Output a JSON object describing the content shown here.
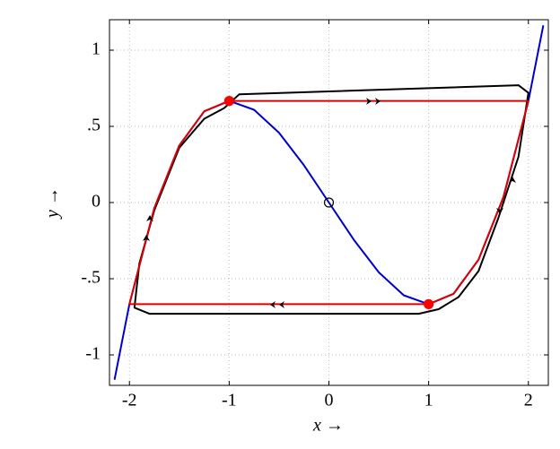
{
  "chart_data": {
    "type": "line",
    "x_label": "x →",
    "y_label": "y →",
    "xlim": [
      -2.2,
      2.2
    ],
    "ylim": [
      -1.2,
      1.2
    ],
    "xticks": [
      -2,
      -1,
      0,
      1,
      2
    ],
    "yticks": [
      -1,
      {
        "value": -0.5,
        "label": "-.5"
      },
      0,
      {
        "value": 0.5,
        "label": ".5"
      },
      1
    ],
    "grid": true,
    "series": [
      {
        "color": "#0000cc",
        "mode": "line",
        "x": [
          -2.15,
          -2,
          -1.75,
          -1.5,
          -1.25,
          -1,
          -0.75,
          -0.5,
          -0.25,
          0,
          0.25,
          0.5,
          0.75,
          1,
          1.25,
          1.5,
          1.75,
          2,
          2.15
        ],
        "values": [
          -1.163,
          -0.667,
          -0.036,
          0.375,
          0.599,
          0.667,
          0.609,
          0.458,
          0.245,
          0,
          -0.245,
          -0.458,
          -0.609,
          -0.667,
          -0.599,
          -0.375,
          0.036,
          0.667,
          1.163
        ]
      },
      {
        "color": "#000000",
        "mode": "line",
        "x": [
          -1.05,
          -0.9,
          1.9,
          2.0,
          1.9,
          1.7,
          1.5,
          1.3,
          1.1,
          0.9,
          -1.8,
          -1.95,
          -1.9,
          -1.75,
          -1.5,
          -1.25,
          -1.05
        ],
        "values": [
          0.62,
          0.71,
          0.77,
          0.72,
          0.3,
          -0.1,
          -0.45,
          -0.62,
          -0.7,
          -0.73,
          -0.73,
          -0.69,
          -0.4,
          -0.05,
          0.36,
          0.55,
          0.62
        ]
      },
      {
        "color": "#dd0000",
        "mode": "line",
        "x": [
          -1,
          2,
          1.75,
          1.5,
          1.25,
          1,
          -2,
          -1.75,
          -1.5,
          -1.25,
          -1
        ],
        "values": [
          0.667,
          0.667,
          0.036,
          -0.375,
          -0.599,
          -0.667,
          -0.667,
          -0.036,
          0.375,
          0.599,
          0.667
        ]
      },
      {
        "color": "#ff0000",
        "mode": "markers",
        "filled": true,
        "x": [
          -1,
          1
        ],
        "values": [
          0.667,
          -0.667
        ]
      },
      {
        "color": "#000000",
        "mode": "markers",
        "filled": false,
        "x": [
          0
        ],
        "values": [
          0
        ]
      }
    ]
  }
}
